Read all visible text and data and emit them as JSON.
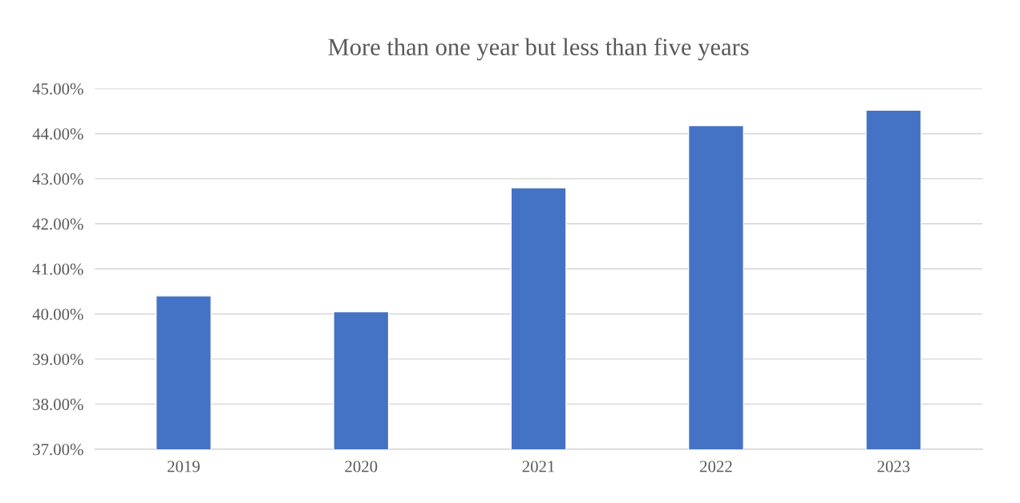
{
  "chart_data": {
    "type": "bar",
    "title": "More than one year but less than five years",
    "categories": [
      "2019",
      "2020",
      "2021",
      "2022",
      "2023"
    ],
    "values": [
      40.4,
      40.05,
      42.8,
      44.18,
      44.52
    ],
    "color": "#4472c4",
    "ylim": [
      37,
      45
    ],
    "yticks": [
      {
        "value": 37,
        "label": "37.00%"
      },
      {
        "value": 38,
        "label": "38.00%"
      },
      {
        "value": 39,
        "label": "39.00%"
      },
      {
        "value": 40,
        "label": "40.00%"
      },
      {
        "value": 41,
        "label": "41.00%"
      },
      {
        "value": 42,
        "label": "42.00%"
      },
      {
        "value": 43,
        "label": "43.00%"
      },
      {
        "value": 44,
        "label": "44.00%"
      },
      {
        "value": 45,
        "label": "45.00%"
      }
    ],
    "grid": "y"
  }
}
